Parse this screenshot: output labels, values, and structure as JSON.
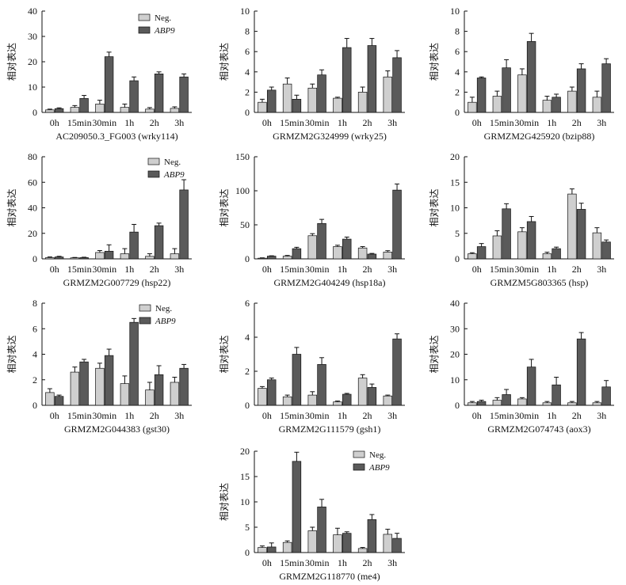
{
  "y_axis_label": "相对表达",
  "x_categories": [
    "0h",
    "15min",
    "30min",
    "1h",
    "2h",
    "3h"
  ],
  "legend": {
    "neg_label": "Neg.",
    "abp9_label": "ABP9"
  },
  "colors": {
    "neg": "#cfcfcf",
    "abp9": "#5a5a5a",
    "stroke": "#111111",
    "axis": "#111111"
  },
  "chart_data": [
    {
      "type": "bar",
      "title": "AC209050.3_FG003 (wrky114)",
      "ylim": [
        0,
        40
      ],
      "yticks": [
        0,
        10,
        20,
        30,
        40
      ],
      "categories": [
        "0h",
        "15min",
        "30min",
        "1h",
        "2h",
        "3h"
      ],
      "has_legend": true,
      "series": [
        {
          "name": "Neg.",
          "values": [
            1,
            2,
            3.3,
            2,
            1.3,
            1.6
          ],
          "errors": [
            0.3,
            0.7,
            1.5,
            1.3,
            0.6,
            0.6
          ]
        },
        {
          "name": "ABP9",
          "values": [
            1.5,
            5.5,
            22,
            12.5,
            15.2,
            14
          ],
          "errors": [
            0.3,
            1.2,
            1.8,
            1.5,
            0.8,
            1.2
          ]
        }
      ]
    },
    {
      "type": "bar",
      "title": "GRMZM2G324999 (wrky25)",
      "ylim": [
        0,
        10
      ],
      "yticks": [
        0,
        2,
        4,
        6,
        8,
        10
      ],
      "categories": [
        "0h",
        "15min",
        "30min",
        "1h",
        "2h",
        "3h"
      ],
      "has_legend": false,
      "series": [
        {
          "name": "Neg.",
          "values": [
            1,
            2.8,
            2.4,
            1.4,
            2,
            3.5
          ],
          "errors": [
            0.3,
            0.6,
            0.4,
            0.1,
            0.5,
            0.6
          ]
        },
        {
          "name": "ABP9",
          "values": [
            2.2,
            1.3,
            3.7,
            6.4,
            6.6,
            5.4
          ],
          "errors": [
            0.3,
            0.4,
            0.5,
            0.9,
            0.7,
            0.7
          ]
        }
      ]
    },
    {
      "type": "bar",
      "title": "GRMZM2G425920 (bzip88)",
      "ylim": [
        0,
        10
      ],
      "yticks": [
        0,
        2,
        4,
        6,
        8,
        10
      ],
      "categories": [
        "0h",
        "15min",
        "30min",
        "1h",
        "2h",
        "3h"
      ],
      "has_legend": false,
      "series": [
        {
          "name": "Neg.",
          "values": [
            1,
            1.6,
            3.7,
            1.2,
            2.1,
            1.5
          ],
          "errors": [
            0.5,
            0.5,
            0.6,
            0.4,
            0.4,
            0.6
          ]
        },
        {
          "name": "ABP9",
          "values": [
            3.4,
            4.4,
            7,
            1.5,
            4.3,
            4.8
          ],
          "errors": [
            0.1,
            0.8,
            0.8,
            0.3,
            0.5,
            0.5
          ]
        }
      ]
    },
    {
      "type": "bar",
      "title": "GRMZM2G007729 (hsp22)",
      "ylim": [
        0,
        80
      ],
      "yticks": [
        0,
        20,
        40,
        60,
        80
      ],
      "categories": [
        "0h",
        "15min",
        "30min",
        "1h",
        "2h",
        "3h"
      ],
      "has_legend": true,
      "series": [
        {
          "name": "Neg.",
          "values": [
            1,
            0.8,
            5,
            4,
            2,
            4
          ],
          "errors": [
            0.5,
            0.3,
            1.5,
            4,
            2,
            4
          ]
        },
        {
          "name": "ABP9",
          "values": [
            1.5,
            1,
            6,
            21,
            26,
            54
          ],
          "errors": [
            0.5,
            0.3,
            5,
            6,
            2,
            8
          ]
        }
      ]
    },
    {
      "type": "bar",
      "title": "GRMZM2G404249 (hsp18a)",
      "ylim": [
        0,
        150
      ],
      "yticks": [
        0,
        50,
        100,
        150
      ],
      "categories": [
        "0h",
        "15min",
        "30min",
        "1h",
        "2h",
        "3h"
      ],
      "has_legend": false,
      "series": [
        {
          "name": "Neg.",
          "values": [
            1,
            4,
            34,
            18,
            16,
            10
          ],
          "errors": [
            0.5,
            1,
            3,
            2,
            2,
            2
          ]
        },
        {
          "name": "ABP9",
          "values": [
            4,
            15,
            52,
            29,
            7,
            101
          ],
          "errors": [
            0.5,
            2,
            6,
            3,
            1,
            9
          ]
        }
      ]
    },
    {
      "type": "bar",
      "title": "GRMZM5G803365 (hsp)",
      "ylim": [
        0,
        20
      ],
      "yticks": [
        0,
        5,
        10,
        15,
        20
      ],
      "categories": [
        "0h",
        "15min",
        "30min",
        "1h",
        "2h",
        "3h"
      ],
      "has_legend": false,
      "series": [
        {
          "name": "Neg.",
          "values": [
            1,
            4.5,
            5.3,
            1,
            12.7,
            5.1
          ],
          "errors": [
            0.2,
            1,
            0.8,
            0.3,
            1,
            1
          ]
        },
        {
          "name": "ABP9",
          "values": [
            2.4,
            9.8,
            7.3,
            2,
            9.7,
            3.3
          ],
          "errors": [
            0.6,
            1,
            1,
            0.3,
            1.2,
            0.4
          ]
        }
      ]
    },
    {
      "type": "bar",
      "title": "GRMZM2G044383 (gst30)",
      "ylim": [
        0,
        8
      ],
      "yticks": [
        0,
        2,
        4,
        6,
        8
      ],
      "categories": [
        "0h",
        "15min",
        "30min",
        "1h",
        "2h",
        "3h"
      ],
      "has_legend": true,
      "series": [
        {
          "name": "Neg.",
          "values": [
            1,
            2.6,
            2.9,
            1.7,
            1.2,
            1.8
          ],
          "errors": [
            0.3,
            0.4,
            0.4,
            0.6,
            0.6,
            0.4
          ]
        },
        {
          "name": "ABP9",
          "values": [
            0.7,
            3.4,
            3.9,
            6.5,
            2.4,
            2.9
          ],
          "errors": [
            0.1,
            0.2,
            0.5,
            0.3,
            0.7,
            0.3
          ]
        }
      ]
    },
    {
      "type": "bar",
      "title": "GRMZM2G111579 (gsh1)",
      "ylim": [
        0,
        6
      ],
      "yticks": [
        0,
        2,
        4,
        6
      ],
      "categories": [
        "0h",
        "15min",
        "30min",
        "1h",
        "2h",
        "3h"
      ],
      "has_legend": false,
      "series": [
        {
          "name": "Neg.",
          "values": [
            1,
            0.5,
            0.6,
            0.2,
            1.6,
            0.55
          ],
          "errors": [
            0.1,
            0.1,
            0.2,
            0.05,
            0.2,
            0.05
          ]
        },
        {
          "name": "ABP9",
          "values": [
            1.5,
            3,
            2.4,
            0.65,
            1.05,
            3.9
          ],
          "errors": [
            0.1,
            0.4,
            0.4,
            0.05,
            0.2,
            0.3
          ]
        }
      ]
    },
    {
      "type": "bar",
      "title": "GRMZM2G074743 (aox3)",
      "ylim": [
        0,
        40
      ],
      "yticks": [
        0,
        10,
        20,
        30,
        40
      ],
      "categories": [
        "0h",
        "15min",
        "30min",
        "1h",
        "2h",
        "3h"
      ],
      "has_legend": false,
      "series": [
        {
          "name": "Neg.",
          "values": [
            1,
            2,
            2.5,
            1,
            1,
            1
          ],
          "errors": [
            0.5,
            1,
            0.5,
            0.5,
            0.5,
            0.5
          ]
        },
        {
          "name": "ABP9",
          "values": [
            1.5,
            4.2,
            15,
            8,
            26,
            7.2
          ],
          "errors": [
            0.5,
            2,
            3,
            3,
            2.5,
            2.5
          ]
        }
      ]
    },
    {
      "type": "bar",
      "title": "GRMZM2G118770 (me4)",
      "ylim": [
        0,
        20
      ],
      "yticks": [
        0,
        5,
        10,
        15,
        20
      ],
      "categories": [
        "0h",
        "15min",
        "30min",
        "1h",
        "2h",
        "3h"
      ],
      "has_legend": true,
      "series": [
        {
          "name": "Neg.",
          "values": [
            1,
            2,
            4.3,
            3.5,
            0.8,
            3.6
          ],
          "errors": [
            0.3,
            0.3,
            0.7,
            1.3,
            0.2,
            1
          ]
        },
        {
          "name": "ABP9",
          "values": [
            1.1,
            18,
            9,
            3.8,
            6.5,
            2.8
          ],
          "errors": [
            0.8,
            1.8,
            1.5,
            0.3,
            1,
            1
          ]
        }
      ]
    }
  ]
}
